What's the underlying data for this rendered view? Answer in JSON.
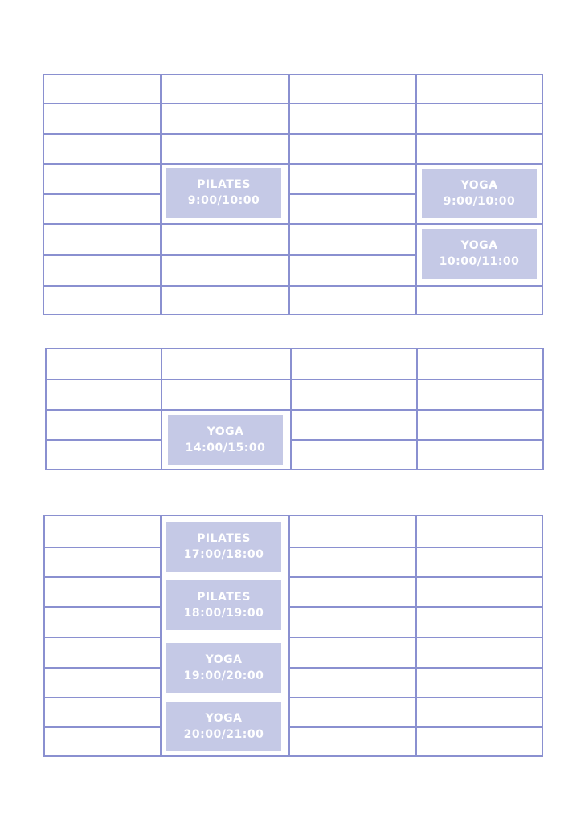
{
  "colors": {
    "grid_line": "#8a90d0",
    "class_block": "#c5c9e6",
    "class_text": "#ffffff",
    "background": "#ffffff"
  },
  "sections": [
    {
      "blocks": [
        {
          "name": "PILATES",
          "time": "9:00/10:00"
        },
        {
          "name": "YOGA",
          "time": "9:00/10:00"
        },
        {
          "name": "YOGA",
          "time": "10:00/11:00"
        }
      ]
    },
    {
      "blocks": [
        {
          "name": "YOGA",
          "time": "14:00/15:00"
        }
      ]
    },
    {
      "blocks": [
        {
          "name": "PILATES",
          "time": "17:00/18:00"
        },
        {
          "name": "PILATES",
          "time": "18:00/19:00"
        },
        {
          "name": "YOGA",
          "time": "19:00/20:00"
        },
        {
          "name": "YOGA",
          "time": "20:00/21:00"
        }
      ]
    }
  ]
}
